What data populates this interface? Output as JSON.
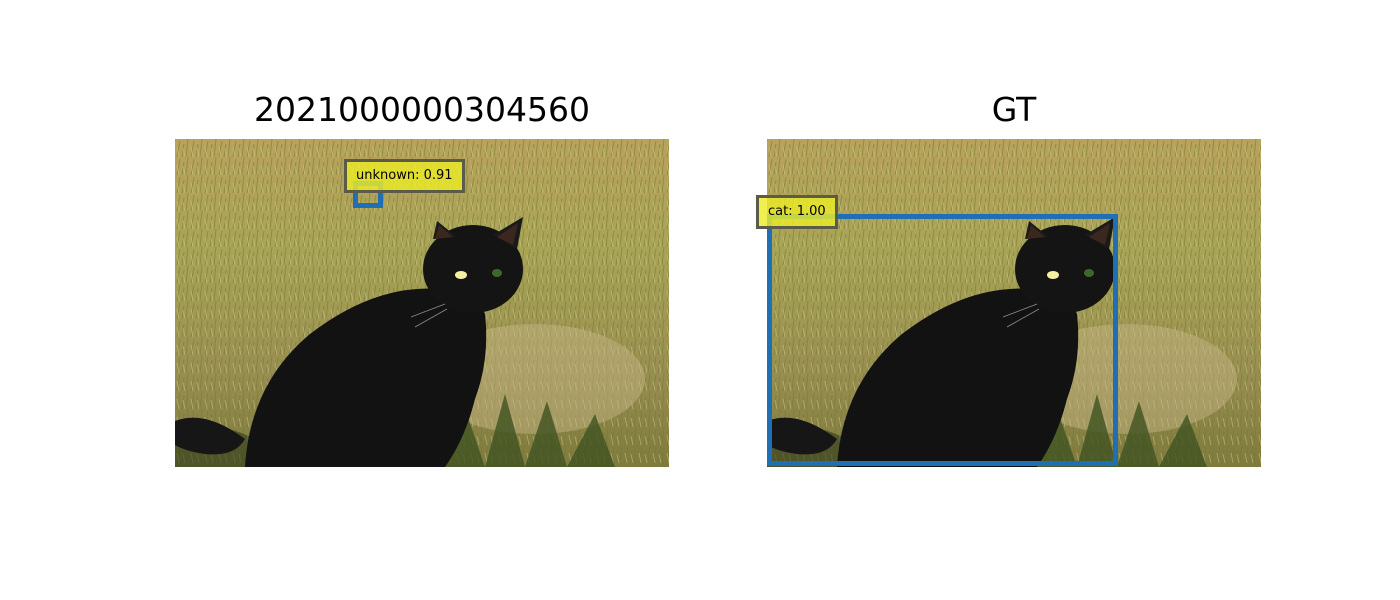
{
  "panels": [
    {
      "title": "2021000000304560",
      "detections": [
        {
          "label": "unknown: 0.91"
        }
      ]
    },
    {
      "title": "GT",
      "detections": [
        {
          "label": "cat: 1.00"
        }
      ]
    }
  ],
  "colors": {
    "box": "#1f6fb4",
    "label_bg": "#ecec28",
    "label_border": "#5b5b4a"
  }
}
